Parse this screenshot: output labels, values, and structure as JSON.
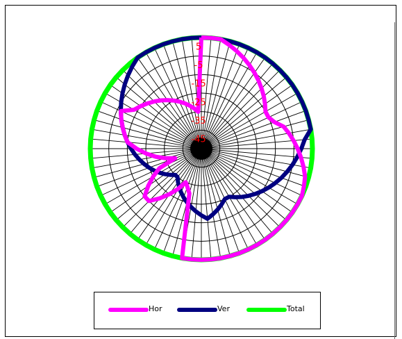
{
  "chart_data": {
    "type": "polar-line",
    "radial_ticks": [
      "5",
      "-5",
      "-15",
      "-25",
      "-35",
      "-45"
    ],
    "angle_step_deg": 5,
    "series": [
      {
        "name": "Hor",
        "color": "#ff00ff",
        "values": [
          10,
          12,
          14,
          8,
          6,
          4,
          2,
          0,
          -2,
          -4,
          -6,
          -8,
          -10,
          -10,
          -8,
          -4,
          -2,
          0,
          2,
          4,
          6,
          8,
          9,
          10,
          12,
          14,
          16,
          18,
          20,
          22,
          24,
          23,
          22,
          21,
          21,
          20,
          20,
          19,
          19,
          -25,
          -28,
          -30,
          -25,
          -20,
          -15,
          -10,
          -10,
          -15,
          -20,
          -25,
          -35,
          -30,
          -25,
          -20,
          -15,
          -10,
          -8,
          -6,
          -4,
          -2,
          -8,
          -10,
          -12,
          -14,
          -16,
          -18,
          -20,
          -22,
          -24,
          -26,
          -28,
          -30
        ]
      },
      {
        "name": "Ver",
        "color": "#000080",
        "values": [
          14,
          14,
          16,
          18,
          20,
          22,
          25,
          26,
          27,
          27,
          26,
          25,
          24,
          23,
          20,
          14,
          10,
          6,
          4,
          2,
          0,
          -2,
          -4,
          -6,
          -8,
          -10,
          -12,
          -14,
          -16,
          -18,
          -20,
          -20,
          -18,
          -16,
          -14,
          -12,
          -14,
          -16,
          -18,
          -20,
          -22,
          -24,
          -26,
          -28,
          -30,
          -30,
          -28,
          -26,
          -24,
          -22,
          -20,
          -18,
          -16,
          -14,
          -12,
          -10,
          -8,
          -6,
          -4,
          -2,
          0,
          2,
          4,
          6,
          8,
          10,
          12,
          14,
          14,
          14,
          14,
          14
        ]
      },
      {
        "name": "Total",
        "color": "#00ff00",
        "values": [
          20,
          20,
          20,
          21,
          22,
          23,
          25,
          26,
          27,
          28,
          29,
          30,
          30,
          30,
          29,
          28,
          27,
          26,
          25,
          24,
          23,
          22,
          21,
          20,
          19,
          19,
          18,
          18,
          18,
          18,
          18,
          18,
          18,
          18,
          18,
          18,
          18,
          18,
          18,
          18,
          18,
          18,
          18,
          18,
          18,
          18,
          18,
          18,
          18,
          18,
          18,
          18,
          18,
          18,
          18,
          18,
          18,
          18,
          18,
          18,
          18,
          18,
          18,
          18,
          18,
          18,
          18,
          18,
          18,
          18,
          18,
          18
        ]
      }
    ],
    "legend": "bottom"
  }
}
